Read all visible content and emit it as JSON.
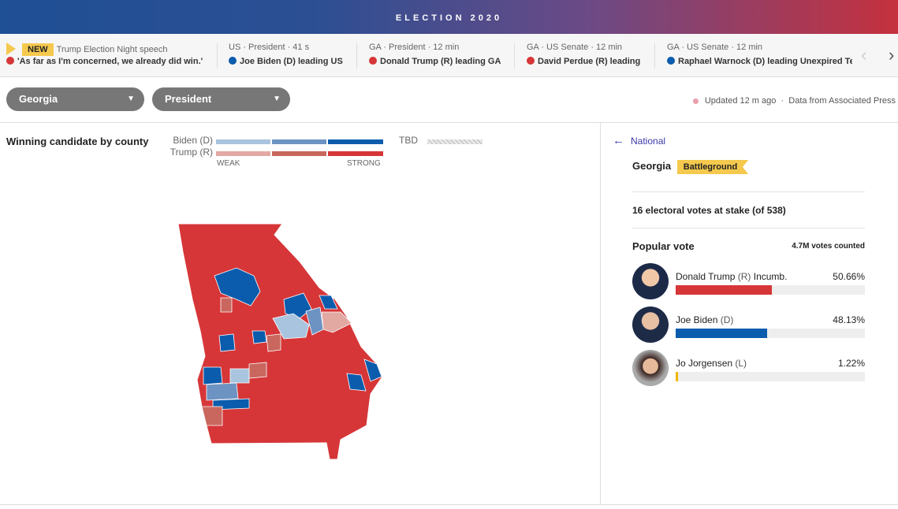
{
  "banner": {
    "title": "ELECTION 2020"
  },
  "ticker": [
    {
      "tag": "NEW",
      "topline": "Trump Election Night speech",
      "headline": "'As far as I'm concerned, we already did win.'",
      "party_color": "#d63638"
    },
    {
      "topline": "US · President · 41 s",
      "headline": "Joe Biden (D) leading US",
      "party_color": "#0b5cad"
    },
    {
      "topline": "GA · President · 12 min",
      "headline": "Donald Trump (R) leading GA",
      "party_color": "#d63638"
    },
    {
      "topline": "GA · US Senate · 12 min",
      "headline": "David Perdue (R) leading",
      "party_color": "#d63638"
    },
    {
      "topline": "GA · US Senate · 12 min",
      "headline": "Raphael Warnock (D) leading Unexpired Term",
      "party_color": "#0b5cad"
    }
  ],
  "filters": {
    "state": "Georgia",
    "race": "President"
  },
  "status": {
    "updated": "Updated 12 m ago",
    "source": "Data from Associated Press"
  },
  "map": {
    "title": "Winning candidate by county",
    "legend": {
      "biden": "Biden (D)",
      "trump": "Trump (R)",
      "tbd": "TBD",
      "weak": "WEAK",
      "strong": "STRONG"
    },
    "colors": {
      "biden": [
        "#a9c4de",
        "#6d93c2",
        "#0b5cad"
      ],
      "trump": [
        "#e2a9a3",
        "#c9675e",
        "#d63638"
      ]
    }
  },
  "panel": {
    "back": "National",
    "state": "Georgia",
    "badge": "Battleground",
    "electoral": "16 electoral votes at stake (of 538)",
    "popular_title": "Popular vote",
    "votes_counted": "4.7M votes counted",
    "candidates": [
      {
        "name": "Donald Trump",
        "party": "(R)",
        "note": "Incumb.",
        "pct": "50.66%",
        "share": 50.66,
        "color": "#d63638"
      },
      {
        "name": "Joe Biden",
        "party": "(D)",
        "note": "",
        "pct": "48.13%",
        "share": 48.13,
        "color": "#0b5cad"
      },
      {
        "name": "Jo Jorgensen",
        "party": "(L)",
        "note": "",
        "pct": "1.22%",
        "share": 1.22,
        "color": "#f2b705"
      }
    ]
  }
}
